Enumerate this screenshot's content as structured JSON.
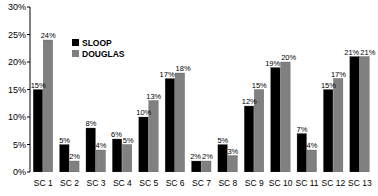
{
  "chart_data": {
    "type": "bar",
    "categories": [
      "SC 1",
      "SC 2",
      "SC 3",
      "SC 4",
      "SC 5",
      "SC 6",
      "SC 7",
      "SC 8",
      "SC 9",
      "SC 10",
      "SC 11",
      "SC 12",
      "SC 13"
    ],
    "series": [
      {
        "name": "SLOOP",
        "color": "#000000",
        "values": [
          15,
          5,
          8,
          6,
          10,
          17,
          2,
          5,
          12,
          19,
          7,
          15,
          21
        ],
        "value_labels": [
          "15%",
          "5%",
          "8%",
          "6%",
          "10%",
          "17%",
          "2%",
          "5%",
          "12%",
          "19%",
          "7%",
          "15%",
          "21%"
        ]
      },
      {
        "name": "DOUGLAS",
        "color": "#808080",
        "values": [
          24,
          2,
          4,
          5,
          13,
          18,
          2,
          3,
          15,
          20,
          4,
          17,
          21
        ],
        "value_labels": [
          "24%",
          "2%",
          "4%",
          "5%",
          "13%",
          "18%",
          "2%",
          "3%",
          "15%",
          "20%",
          "4%",
          "17%",
          "21%"
        ]
      }
    ],
    "ylim": [
      0,
      30
    ],
    "yticks": [
      {
        "value": 0,
        "label": "0%"
      },
      {
        "value": 5,
        "label": "5%"
      },
      {
        "value": 10,
        "label": "10%"
      },
      {
        "value": 15,
        "label": "15%"
      },
      {
        "value": 20,
        "label": "20%"
      },
      {
        "value": 25,
        "label": "25%"
      },
      {
        "value": 30,
        "label": "30%"
      }
    ],
    "grid": false,
    "legend": "upper left",
    "data_labels": true
  }
}
